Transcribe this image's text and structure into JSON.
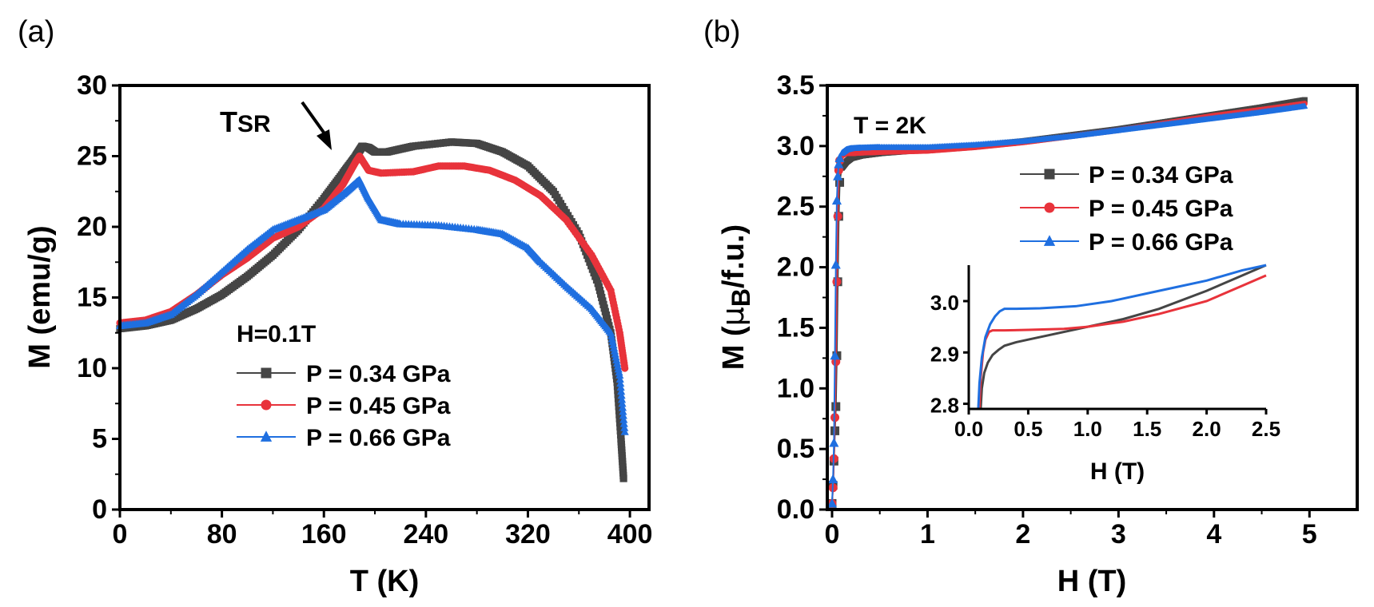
{
  "colors": {
    "p034": "#454545",
    "p045": "#e8333b",
    "p066": "#1f6fe0"
  },
  "chart_data": [
    {
      "id": "a",
      "panel_label": "(a)",
      "type": "scatter",
      "xlabel": "T (K)",
      "ylabel": "M (emu/g)",
      "xlim": [
        0,
        415
      ],
      "ylim": [
        0,
        30
      ],
      "xticks": [
        0,
        80,
        160,
        240,
        320,
        400
      ],
      "yticks": [
        0,
        5,
        10,
        15,
        20,
        25,
        30
      ],
      "xtick_labels": [
        "0",
        "80",
        "160",
        "240",
        "320",
        "400"
      ],
      "ytick_labels": [
        "0",
        "5",
        "10",
        "15",
        "20",
        "25",
        "30"
      ],
      "field_label": "H=0.1T",
      "annotation": {
        "main": "T",
        "sub": "SR",
        "target_x": 180,
        "target_y": 25.2
      },
      "legend": [
        "P = 0.34 GPa",
        "P = 0.45 GPa",
        "P = 0.66 GPa"
      ],
      "series": [
        {
          "name": "P = 0.34 GPa",
          "marker": "square",
          "color": "#454545",
          "x": [
            0,
            20,
            40,
            60,
            80,
            100,
            120,
            140,
            160,
            175,
            185,
            190,
            195,
            200,
            210,
            230,
            260,
            280,
            300,
            320,
            340,
            360,
            375,
            385,
            390,
            393,
            395
          ],
          "y": [
            12.8,
            13.0,
            13.4,
            14.2,
            15.2,
            16.5,
            18.0,
            19.8,
            22.0,
            23.8,
            25.0,
            25.7,
            25.6,
            25.3,
            25.3,
            25.7,
            26.0,
            25.9,
            25.3,
            24.3,
            22.5,
            19.5,
            16.0,
            12.5,
            9.0,
            5.0,
            2.2
          ]
        },
        {
          "name": "P = 0.45 GPa",
          "marker": "circle",
          "color": "#e8333b",
          "x": [
            0,
            20,
            40,
            60,
            80,
            100,
            120,
            140,
            160,
            175,
            185,
            188,
            195,
            205,
            230,
            250,
            270,
            290,
            310,
            330,
            350,
            370,
            385,
            392,
            396
          ],
          "y": [
            13.2,
            13.4,
            14.0,
            15.2,
            16.6,
            17.8,
            19.2,
            20.0,
            21.3,
            23.0,
            24.6,
            25.0,
            24.0,
            23.8,
            23.9,
            24.3,
            24.3,
            24.0,
            23.3,
            22.2,
            20.5,
            18.0,
            15.5,
            12.5,
            10.0
          ]
        },
        {
          "name": "P = 0.66 GPa",
          "marker": "triangle",
          "color": "#1f6fe0",
          "x": [
            0,
            20,
            40,
            60,
            80,
            100,
            120,
            140,
            160,
            175,
            185,
            188,
            195,
            205,
            220,
            250,
            280,
            300,
            320,
            330,
            350,
            370,
            385,
            392,
            396
          ],
          "y": [
            13.0,
            13.2,
            13.8,
            15.2,
            16.8,
            18.4,
            19.8,
            20.5,
            21.2,
            22.3,
            23.1,
            23.3,
            22.0,
            20.5,
            20.2,
            20.1,
            19.8,
            19.5,
            18.5,
            17.5,
            15.8,
            14.2,
            12.5,
            9.5,
            5.5
          ]
        }
      ]
    },
    {
      "id": "b",
      "panel_label": "(b)",
      "type": "scatter",
      "xlabel": "H (T)",
      "ylabel_main": "M (",
      "ylabel_mu": "μ",
      "ylabel_sub": "B",
      "ylabel_tail": "/f.u.)",
      "xlim": [
        -0.05,
        5.5
      ],
      "ylim": [
        0,
        3.5
      ],
      "xticks": [
        0,
        1,
        2,
        3,
        4,
        5
      ],
      "yticks": [
        0.0,
        0.5,
        1.0,
        1.5,
        2.0,
        2.5,
        3.0,
        3.5
      ],
      "xtick_labels": [
        "0",
        "1",
        "2",
        "3",
        "4",
        "5"
      ],
      "ytick_labels": [
        "0.0",
        "0.5",
        "1.0",
        "1.5",
        "2.0",
        "2.5",
        "3.0",
        "3.5"
      ],
      "temperature_label": "T = 2K",
      "legend": [
        "P = 0.34 GPa",
        "P = 0.45 GPa",
        "P = 0.66 GPa"
      ],
      "series": [
        {
          "name": "P = 0.34 GPa",
          "marker": "square",
          "color": "#454545",
          "x": [
            0.0,
            0.01,
            0.02,
            0.03,
            0.04,
            0.05,
            0.06,
            0.07,
            0.08,
            0.1,
            0.15,
            0.2,
            0.3,
            0.5,
            1.0,
            1.5,
            2.0,
            2.5,
            3.0,
            3.5,
            4.0,
            4.5,
            4.95
          ],
          "y": [
            0.05,
            0.2,
            0.4,
            0.65,
            0.85,
            1.27,
            1.88,
            2.42,
            2.7,
            2.82,
            2.87,
            2.9,
            2.92,
            2.94,
            2.97,
            3.0,
            3.04,
            3.09,
            3.14,
            3.2,
            3.26,
            3.32,
            3.38
          ]
        },
        {
          "name": "P = 0.45 GPa",
          "marker": "circle",
          "color": "#e8333b",
          "x": [
            0.0,
            0.01,
            0.02,
            0.03,
            0.04,
            0.05,
            0.06,
            0.07,
            0.08,
            0.1,
            0.15,
            0.2,
            0.3,
            0.5,
            1.0,
            1.5,
            2.0,
            2.5,
            3.0,
            3.5,
            4.0,
            4.5,
            4.95
          ],
          "y": [
            0.05,
            0.18,
            0.42,
            0.76,
            1.22,
            1.88,
            2.42,
            2.8,
            2.88,
            2.92,
            2.94,
            2.94,
            2.945,
            2.95,
            2.96,
            2.99,
            3.03,
            3.08,
            3.13,
            3.19,
            3.25,
            3.3,
            3.35
          ]
        },
        {
          "name": "P = 0.66 GPa",
          "marker": "triangle",
          "color": "#1f6fe0",
          "x": [
            0.0,
            0.01,
            0.02,
            0.03,
            0.04,
            0.05,
            0.06,
            0.07,
            0.08,
            0.1,
            0.15,
            0.2,
            0.3,
            0.5,
            1.0,
            1.5,
            2.0,
            2.5,
            3.0,
            3.5,
            4.0,
            4.5,
            4.95
          ],
          "y": [
            0.05,
            0.25,
            0.55,
            1.27,
            2.02,
            2.55,
            2.75,
            2.85,
            2.9,
            2.94,
            2.97,
            2.98,
            2.985,
            2.99,
            2.99,
            3.01,
            3.04,
            3.08,
            3.13,
            3.18,
            3.23,
            3.28,
            3.33
          ]
        }
      ]
    },
    {
      "id": "inset",
      "type": "line",
      "xlabel": "H (T)",
      "xlim": [
        0,
        2.5
      ],
      "ylim": [
        2.79,
        3.07
      ],
      "xticks": [
        0.0,
        0.5,
        1.0,
        1.5,
        2.0,
        2.5
      ],
      "yticks": [
        2.8,
        2.9,
        3.0
      ],
      "xtick_labels": [
        "0.0",
        "0.5",
        "1.0",
        "1.5",
        "2.0",
        "2.5"
      ],
      "ytick_labels": [
        "2.8",
        "2.9",
        "3.0"
      ],
      "series": [
        {
          "name": "P = 0.34 GPa",
          "color": "#454545",
          "x": [
            0.1,
            0.11,
            0.13,
            0.16,
            0.2,
            0.25,
            0.3,
            0.4,
            0.5,
            0.7,
            1.0,
            1.3,
            1.6,
            2.0,
            2.3,
            2.5
          ],
          "y": [
            2.79,
            2.83,
            2.86,
            2.88,
            2.895,
            2.905,
            2.913,
            2.92,
            2.925,
            2.935,
            2.95,
            2.965,
            2.985,
            3.02,
            3.05,
            3.07
          ]
        },
        {
          "name": "P = 0.45 GPa",
          "color": "#e8333b",
          "x": [
            0.09,
            0.1,
            0.12,
            0.14,
            0.17,
            0.2,
            0.3,
            0.5,
            0.8,
            1.0,
            1.3,
            1.6,
            2.0,
            2.3,
            2.5
          ],
          "y": [
            2.79,
            2.85,
            2.9,
            2.925,
            2.94,
            2.943,
            2.943,
            2.944,
            2.946,
            2.95,
            2.96,
            2.975,
            3.0,
            3.03,
            3.05
          ]
        },
        {
          "name": "P = 0.66 GPa",
          "color": "#1f6fe0",
          "x": [
            0.08,
            0.09,
            0.11,
            0.14,
            0.18,
            0.22,
            0.26,
            0.3,
            0.4,
            0.6,
            0.9,
            1.2,
            1.6,
            2.0,
            2.3,
            2.5
          ],
          "y": [
            2.79,
            2.84,
            2.89,
            2.93,
            2.955,
            2.97,
            2.98,
            2.985,
            2.985,
            2.986,
            2.99,
            3.0,
            3.02,
            3.04,
            3.06,
            3.07
          ]
        }
      ]
    }
  ]
}
